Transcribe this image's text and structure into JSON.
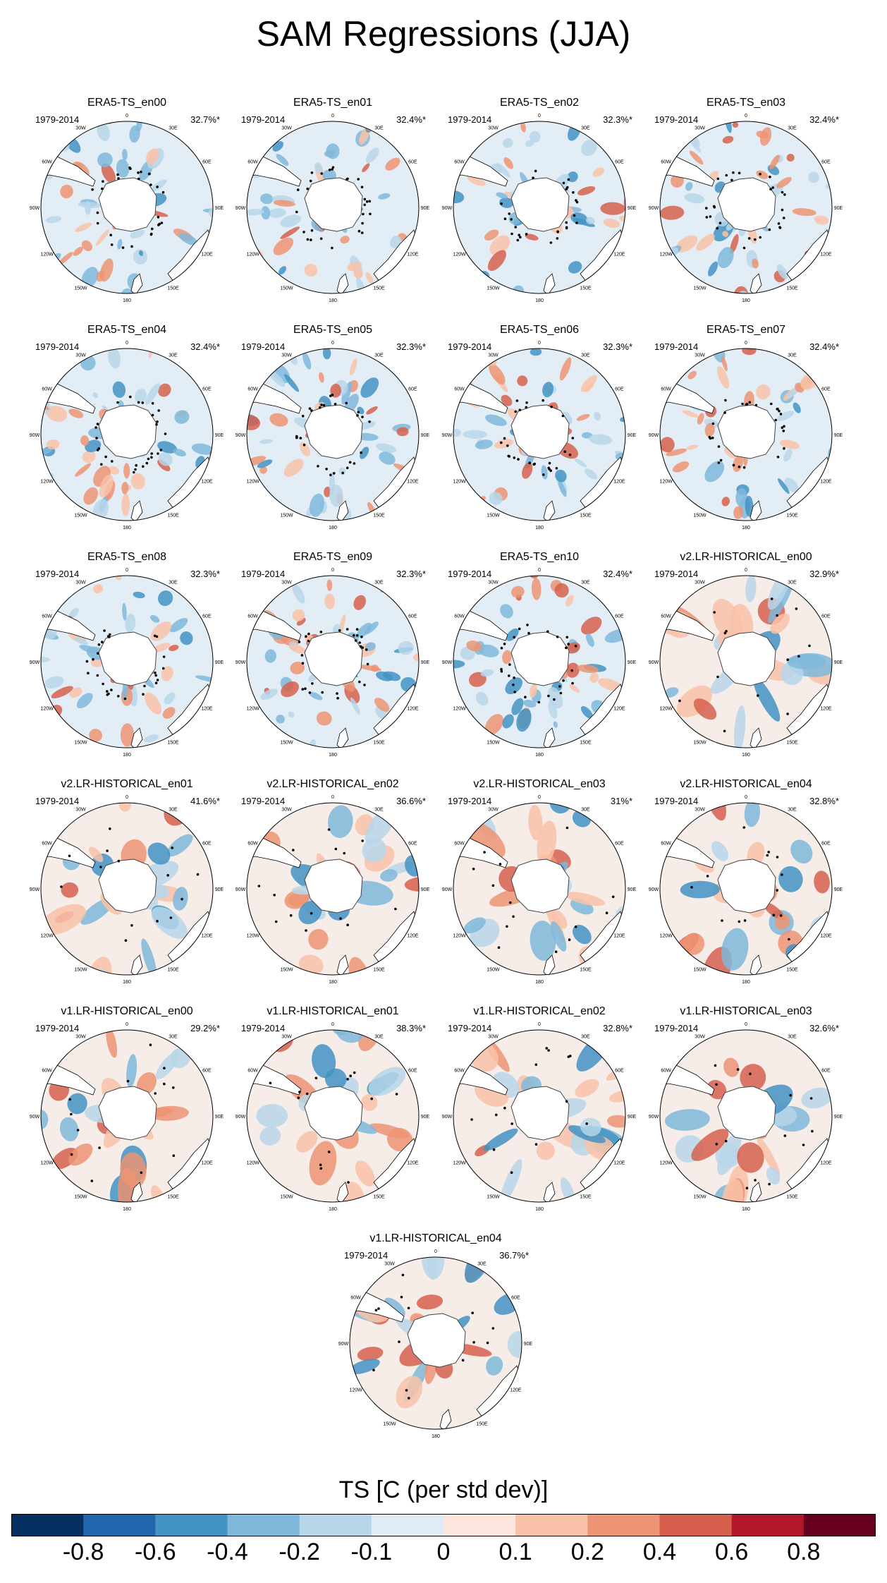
{
  "title": "SAM Regressions (JJA)",
  "common": {
    "years": "1979-2014",
    "lon_labels": {
      "l0": "0",
      "l30e": "30E",
      "l60e": "60E",
      "l90e": "90E",
      "l120e": "120E",
      "l150e": "150E",
      "l180": "180",
      "l150w": "150W",
      "l120w": "120W",
      "l90w": "90W",
      "l60w": "60W",
      "l30w": "30W"
    }
  },
  "panels": [
    {
      "title": "ERA5-TS_en00",
      "pct": "32.7%*",
      "kind": "era",
      "seed": 11
    },
    {
      "title": "ERA5-TS_en01",
      "pct": "32.4%*",
      "kind": "era",
      "seed": 12
    },
    {
      "title": "ERA5-TS_en02",
      "pct": "32.3%*",
      "kind": "era",
      "seed": 13
    },
    {
      "title": "ERA5-TS_en03",
      "pct": "32.4%*",
      "kind": "era",
      "seed": 14
    },
    {
      "title": "ERA5-TS_en04",
      "pct": "32.4%*",
      "kind": "era",
      "seed": 15
    },
    {
      "title": "ERA5-TS_en05",
      "pct": "32.3%*",
      "kind": "era",
      "seed": 16
    },
    {
      "title": "ERA5-TS_en06",
      "pct": "32.3%*",
      "kind": "era",
      "seed": 17
    },
    {
      "title": "ERA5-TS_en07",
      "pct": "32.4%*",
      "kind": "era",
      "seed": 18
    },
    {
      "title": "ERA5-TS_en08",
      "pct": "32.3%*",
      "kind": "era",
      "seed": 19
    },
    {
      "title": "ERA5-TS_en09",
      "pct": "32.3%*",
      "kind": "era",
      "seed": 20
    },
    {
      "title": "ERA5-TS_en10",
      "pct": "32.4%*",
      "kind": "era",
      "seed": 21
    },
    {
      "title": "v2.LR-HISTORICAL_en00",
      "pct": "32.9%*",
      "kind": "model",
      "seed": 31
    },
    {
      "title": "v2.LR-HISTORICAL_en01",
      "pct": "41.6%*",
      "kind": "model",
      "seed": 32
    },
    {
      "title": "v2.LR-HISTORICAL_en02",
      "pct": "36.6%*",
      "kind": "model",
      "seed": 33
    },
    {
      "title": "v2.LR-HISTORICAL_en03",
      "pct": "31%*",
      "kind": "model",
      "seed": 34
    },
    {
      "title": "v2.LR-HISTORICAL_en04",
      "pct": "32.8%*",
      "kind": "model",
      "seed": 35
    },
    {
      "title": "v1.LR-HISTORICAL_en00",
      "pct": "29.2%*",
      "kind": "model",
      "seed": 41
    },
    {
      "title": "v1.LR-HISTORICAL_en01",
      "pct": "38.3%*",
      "kind": "model",
      "seed": 42
    },
    {
      "title": "v1.LR-HISTORICAL_en02",
      "pct": "32.8%*",
      "kind": "model",
      "seed": 43
    },
    {
      "title": "v1.LR-HISTORICAL_en03",
      "pct": "32.6%*",
      "kind": "model",
      "seed": 44
    },
    {
      "title": "v1.LR-HISTORICAL_en04",
      "pct": "36.7%*",
      "kind": "model",
      "seed": 45
    }
  ],
  "colorbar": {
    "title": "TS [C (per std dev)]",
    "colors": [
      "#053061",
      "#2166ac",
      "#4393c3",
      "#7fb8da",
      "#b7d6e9",
      "#e0ecf5",
      "#fbe5dc",
      "#f9c2a8",
      "#ec9473",
      "#d6604d",
      "#b2182b",
      "#67001f"
    ],
    "labels": [
      "-0.8",
      "-0.6",
      "-0.4",
      "-0.2",
      "-0.1",
      "0",
      "0.1",
      "0.2",
      "0.4",
      "0.6",
      "0.8"
    ]
  }
}
